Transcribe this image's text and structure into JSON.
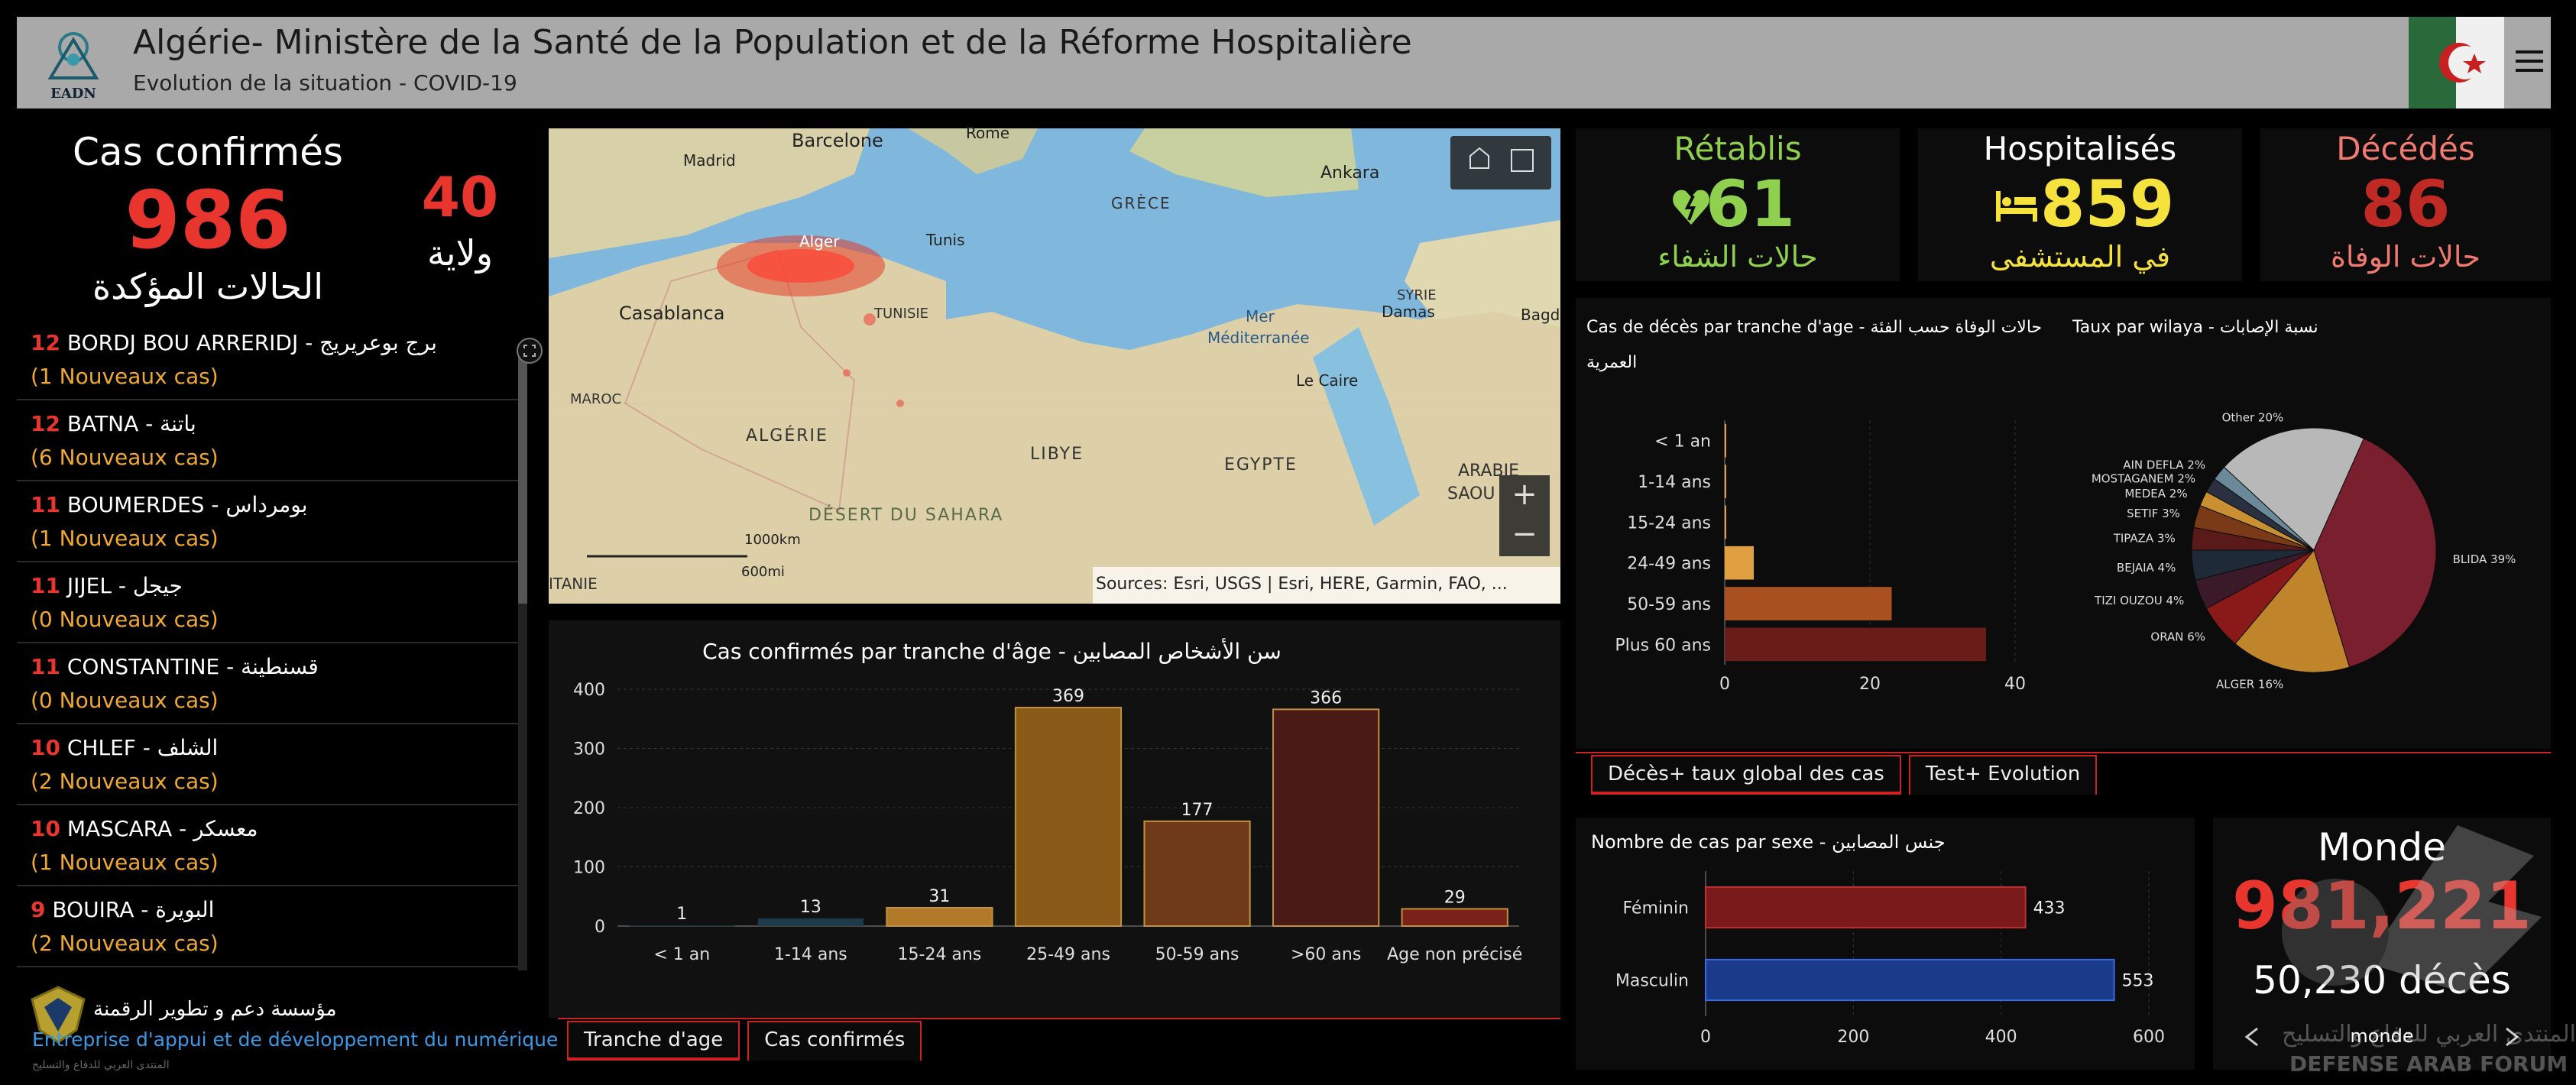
{
  "header": {
    "title": "Algérie- Ministère de la Santé de la Population et de la Réforme Hospitalière",
    "subtitle": "Evolution de la situation - COVID-19",
    "logo_text": "EADN"
  },
  "confirmed": {
    "label": "Cas confirmés",
    "value": "986",
    "arabic": "الحالات المؤكدة",
    "wilaya_count": "40",
    "wilaya_label": "ولاية"
  },
  "wilaya_list": [
    {
      "count": "12",
      "name": "BORDJ BOU ARRERIDJ - ",
      "arabic": "برج بوعريريج",
      "new": "(1 Nouveaux cas)"
    },
    {
      "count": "12",
      "name": "BATNA - ",
      "arabic": "باتنة",
      "new": "(6 Nouveaux cas)"
    },
    {
      "count": "11",
      "name": "BOUMERDES - ",
      "arabic": "بومرداس",
      "new": "(1 Nouveaux cas)"
    },
    {
      "count": "11",
      "name": "JIJEL - ",
      "arabic": "جيجل",
      "new": "(0 Nouveaux cas)"
    },
    {
      "count": "11",
      "name": "CONSTANTINE - ",
      "arabic": "قسنطينة",
      "new": "(0 Nouveaux cas)"
    },
    {
      "count": "10",
      "name": "CHLEF - ",
      "arabic": "الشلف",
      "new": "(2 Nouveaux cas)"
    },
    {
      "count": "10",
      "name": "MASCARA - ",
      "arabic": "معسكر",
      "new": "(1 Nouveaux cas)"
    },
    {
      "count": "9",
      "name": "BOUIRA - ",
      "arabic": "البويرة",
      "new": "(2 Nouveaux cas)"
    }
  ],
  "footer_left": {
    "arabic": "مؤسسة دعم و تطوير الرقمنة",
    "french": "Entreprise d'appui et de développement du numérique",
    "small": "المنتدى العربي للدفاع والتسليح"
  },
  "map": {
    "labels": [
      "Madrid",
      "Barcelone",
      "Rome",
      "Ankara",
      "GRÈCE",
      "Alger",
      "Tunis",
      "Casablanca",
      "TUNISIE",
      "Mer",
      "Méditerranée",
      "SYRIE",
      "Damas",
      "Bagd",
      "MAROC",
      "ALGÉRIE",
      "LIBYE",
      "EGYPTE",
      "Le Caire",
      "ARABIE",
      "SAOU",
      "DÉSERT DU SAHARA",
      "ITANIE"
    ],
    "scale_km": "1000km",
    "scale_mi": "600mi",
    "attribution": "Sources: Esri, USGS | Esri, HERE, Garmin, FAO, ...",
    "zoom_in": "+",
    "zoom_out": "−"
  },
  "kpis": {
    "recovered": {
      "label": "Rétablis",
      "value": "61",
      "arabic": "حالات الشفاء",
      "color": "#8fd14f"
    },
    "hospitalized": {
      "label": "Hospitalisés",
      "value": "859",
      "arabic": "في المستشفى",
      "color": "#f5e23c"
    },
    "deceased": {
      "label": "Décédés",
      "value": "86",
      "arabic": "حالات الوفاة",
      "color": "#e8362e"
    }
  },
  "deaths_title": "Cas de décès par tranche d'age - حالات الوفاة حسب الفئة",
  "deaths_title2": "العمرية",
  "pie_title": "Taux par wilaya - نسبة الإصابات",
  "right_tabs": [
    "Décès+ taux global des cas",
    "Test+ Evolution"
  ],
  "sex_title": "Nombre de cas par sexe - جنس المصابين",
  "world": {
    "label": "Monde",
    "cases": "981,221",
    "deaths": "50,230 décès",
    "nav_label": "monde"
  },
  "age_tabs": [
    "Tranche d'age",
    "Cas confirmés"
  ],
  "watermark": {
    "arabic": "المنتدى العربي للدفاع والتسليح",
    "latin": "DEFENSE ARAB FORUM"
  },
  "chart_data": [
    {
      "type": "bar",
      "title": "Cas confirmés par tranche d'âge - سن الأشخاص المصابين",
      "categories": [
        "< 1 an",
        "1-14 ans",
        "15-24 ans",
        "25-49 ans",
        "50-59 ans",
        ">60 ans",
        "Age non précisé"
      ],
      "values": [
        1,
        13,
        31,
        369,
        177,
        366,
        29
      ],
      "ylim": [
        0,
        400
      ],
      "yticks": [
        0,
        100,
        200,
        300,
        400
      ],
      "colors": [
        "#1f3a4a",
        "#1f3a4a",
        "#b07a28",
        "#8a5a18",
        "#6e3a18",
        "#4a1a16",
        "#7a2218"
      ]
    },
    {
      "type": "bar",
      "orientation": "horizontal",
      "categories": [
        "< 1 an",
        "1-14 ans",
        "15-24 ans",
        "24-49 ans",
        "50-59 ans",
        "Plus 60 ans"
      ],
      "values": [
        0,
        0,
        0,
        4,
        23,
        36
      ],
      "xlim": [
        0,
        40
      ],
      "xticks": [
        0,
        20,
        40
      ],
      "colors": [
        "#e0a040",
        "#e0a040",
        "#e0a040",
        "#e0a040",
        "#a85020",
        "#6a1c18"
      ]
    },
    {
      "type": "pie",
      "labels": [
        "BLIDA 39%",
        "ALGER 16%",
        "ORAN 6%",
        "TIZI OUZOU 4%",
        "BEJAIA 4%",
        "TIPAZA 3%",
        "SETIF 3%",
        "MEDEA 2%",
        "MOSTAGANEM 2%",
        "AIN DEFLA 2%",
        "Other 20%"
      ],
      "values": [
        39,
        16,
        6,
        4,
        4,
        3,
        3,
        2,
        2,
        2,
        20
      ],
      "colors": [
        "#7a1f2e",
        "#c0852a",
        "#8a1a1a",
        "#3a1a28",
        "#1e2a38",
        "#5a1a1a",
        "#7a3a18",
        "#c89030",
        "#2a3040",
        "#6a8a9a",
        "#b8b8b8"
      ]
    },
    {
      "type": "bar",
      "orientation": "horizontal",
      "categories": [
        "Féminin",
        "Masculin"
      ],
      "values": [
        433,
        553
      ],
      "xlim": [
        0,
        600
      ],
      "xticks": [
        0,
        200,
        400,
        600
      ],
      "colors": [
        "#7a1a1a",
        "#1a3a8a"
      ]
    }
  ]
}
